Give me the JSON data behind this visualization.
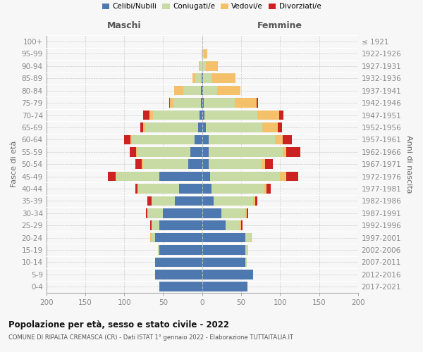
{
  "age_groups": [
    "0-4",
    "5-9",
    "10-14",
    "15-19",
    "20-24",
    "25-29",
    "30-34",
    "35-39",
    "40-44",
    "45-49",
    "50-54",
    "55-59",
    "60-64",
    "65-69",
    "70-74",
    "75-79",
    "80-84",
    "85-89",
    "90-94",
    "95-99",
    "100+"
  ],
  "birth_years": [
    "2017-2021",
    "2012-2016",
    "2007-2011",
    "2002-2006",
    "1997-2001",
    "1992-1996",
    "1987-1991",
    "1982-1986",
    "1977-1981",
    "1972-1976",
    "1967-1971",
    "1962-1966",
    "1957-1961",
    "1952-1956",
    "1947-1951",
    "1942-1946",
    "1937-1941",
    "1932-1936",
    "1927-1931",
    "1922-1926",
    "≤ 1921"
  ],
  "maschi": {
    "celibi": [
      55,
      60,
      60,
      55,
      60,
      55,
      50,
      35,
      30,
      55,
      18,
      15,
      10,
      5,
      3,
      2,
      2,
      1,
      0,
      0,
      0
    ],
    "coniugati": [
      0,
      0,
      0,
      2,
      5,
      10,
      20,
      30,
      52,
      55,
      58,
      68,
      80,
      68,
      60,
      35,
      22,
      8,
      3,
      1,
      0
    ],
    "vedovi": [
      0,
      0,
      0,
      0,
      2,
      0,
      0,
      0,
      1,
      1,
      2,
      2,
      2,
      3,
      5,
      4,
      12,
      3,
      1,
      0,
      0
    ],
    "divorziati": [
      0,
      0,
      0,
      0,
      0,
      2,
      2,
      5,
      3,
      10,
      8,
      8,
      8,
      3,
      8,
      1,
      0,
      0,
      0,
      0,
      0
    ]
  },
  "femmine": {
    "nubili": [
      58,
      65,
      55,
      55,
      55,
      30,
      25,
      15,
      12,
      10,
      8,
      8,
      8,
      5,
      3,
      2,
      1,
      1,
      0,
      0,
      0
    ],
    "coniugate": [
      0,
      0,
      2,
      4,
      8,
      18,
      30,
      50,
      68,
      90,
      68,
      95,
      85,
      72,
      68,
      40,
      18,
      12,
      5,
      2,
      0
    ],
    "vedove": [
      0,
      0,
      0,
      0,
      1,
      2,
      2,
      3,
      3,
      8,
      5,
      5,
      10,
      20,
      28,
      28,
      30,
      30,
      15,
      5,
      0
    ],
    "divorziate": [
      0,
      0,
      0,
      0,
      0,
      2,
      2,
      3,
      5,
      15,
      10,
      18,
      12,
      5,
      5,
      2,
      0,
      0,
      0,
      0,
      0
    ]
  },
  "colors": {
    "celibi": "#4e78b0",
    "coniugati": "#c9dba4",
    "vedovi": "#f5c06a",
    "divorziati": "#cc2222"
  },
  "xlim": 200,
  "title": "Popolazione per età, sesso e stato civile - 2022",
  "subtitle": "COMUNE DI RIPALTA CREMASCA (CR) - Dati ISTAT 1° gennaio 2022 - Elaborazione TUTTAITALIA.IT",
  "ylabel_left": "Fasce di età",
  "ylabel_right": "Anni di nascita",
  "xlabel_maschi": "Maschi",
  "xlabel_femmine": "Femmine",
  "legend_labels": [
    "Celibi/Nubili",
    "Coniugati/e",
    "Vedovi/e",
    "Divorziati/e"
  ],
  "bg_color": "#f7f7f7",
  "grid_color": "#cccccc"
}
